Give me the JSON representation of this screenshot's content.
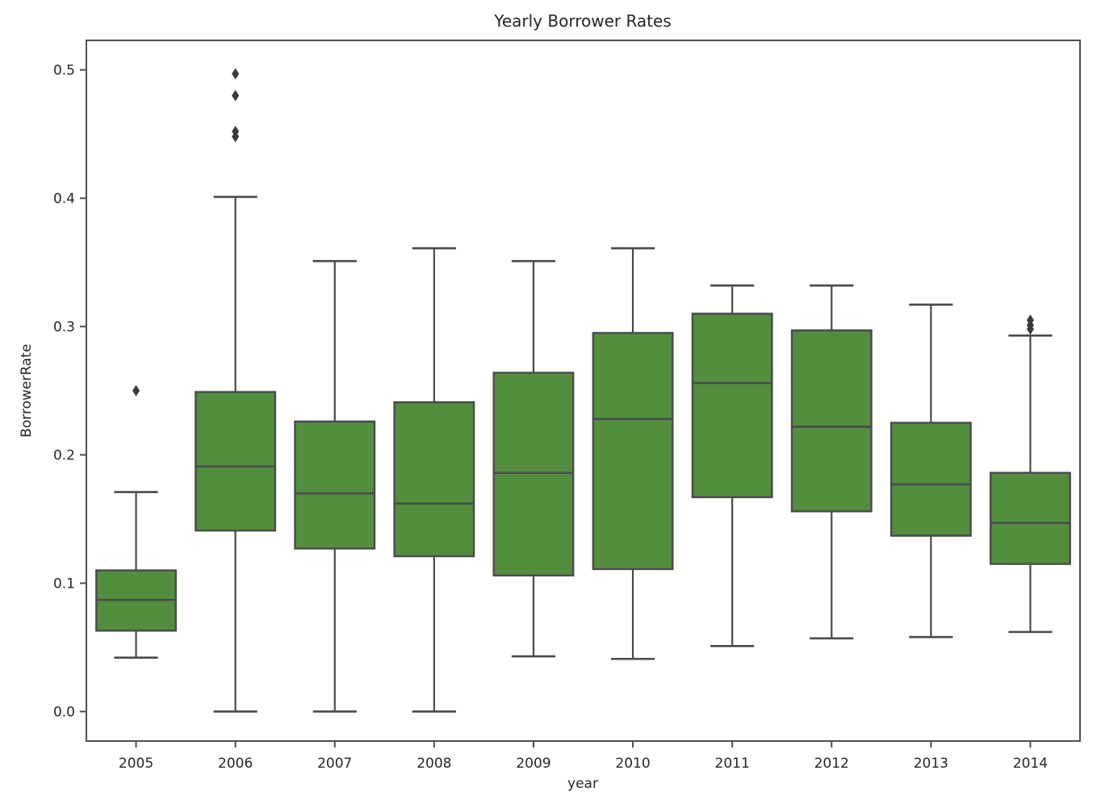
{
  "figure": {
    "background": "#ffffff"
  },
  "chart_data": {
    "type": "boxplot",
    "title": "Yearly Borrower Rates",
    "xlabel": "year",
    "ylabel": "BorrowerRate",
    "categories": [
      "2005",
      "2006",
      "2007",
      "2008",
      "2009",
      "2010",
      "2011",
      "2012",
      "2013",
      "2014"
    ],
    "yticks": [
      0.0,
      0.1,
      0.2,
      0.3,
      0.4,
      0.5
    ],
    "ylim": [
      -0.023,
      0.523
    ],
    "grid": false,
    "legend": "none",
    "box_fill_color": "#538d3e",
    "box_edge_color": "#4a4a4a",
    "whisker_color": "#4a4a4a",
    "median_color": "#3d3d3d",
    "outlier_color": "#3a3a3a",
    "spine_color": "#4e4e4e",
    "series": [
      {
        "year": "2005",
        "whisker_low": 0.042,
        "q1": 0.063,
        "median": 0.087,
        "q3": 0.11,
        "whisker_high": 0.171,
        "outliers": [
          0.25
        ]
      },
      {
        "year": "2006",
        "whisker_low": 0.0,
        "q1": 0.141,
        "median": 0.191,
        "q3": 0.249,
        "whisker_high": 0.401,
        "outliers": [
          0.448,
          0.452,
          0.48,
          0.497
        ]
      },
      {
        "year": "2007",
        "whisker_low": 0.0,
        "q1": 0.127,
        "median": 0.17,
        "q3": 0.226,
        "whisker_high": 0.351,
        "outliers": []
      },
      {
        "year": "2008",
        "whisker_low": 0.0,
        "q1": 0.121,
        "median": 0.162,
        "q3": 0.241,
        "whisker_high": 0.361,
        "outliers": []
      },
      {
        "year": "2009",
        "whisker_low": 0.043,
        "q1": 0.106,
        "median": 0.186,
        "q3": 0.264,
        "whisker_high": 0.351,
        "outliers": []
      },
      {
        "year": "2010",
        "whisker_low": 0.041,
        "q1": 0.111,
        "median": 0.228,
        "q3": 0.295,
        "whisker_high": 0.361,
        "outliers": []
      },
      {
        "year": "2011",
        "whisker_low": 0.051,
        "q1": 0.167,
        "median": 0.256,
        "q3": 0.31,
        "whisker_high": 0.332,
        "outliers": []
      },
      {
        "year": "2012",
        "whisker_low": 0.057,
        "q1": 0.156,
        "median": 0.222,
        "q3": 0.297,
        "whisker_high": 0.332,
        "outliers": []
      },
      {
        "year": "2013",
        "whisker_low": 0.058,
        "q1": 0.137,
        "median": 0.177,
        "q3": 0.225,
        "whisker_high": 0.317,
        "outliers": []
      },
      {
        "year": "2014",
        "whisker_low": 0.062,
        "q1": 0.115,
        "median": 0.147,
        "q3": 0.186,
        "whisker_high": 0.293,
        "outliers": [
          0.298,
          0.301,
          0.305
        ]
      }
    ]
  }
}
